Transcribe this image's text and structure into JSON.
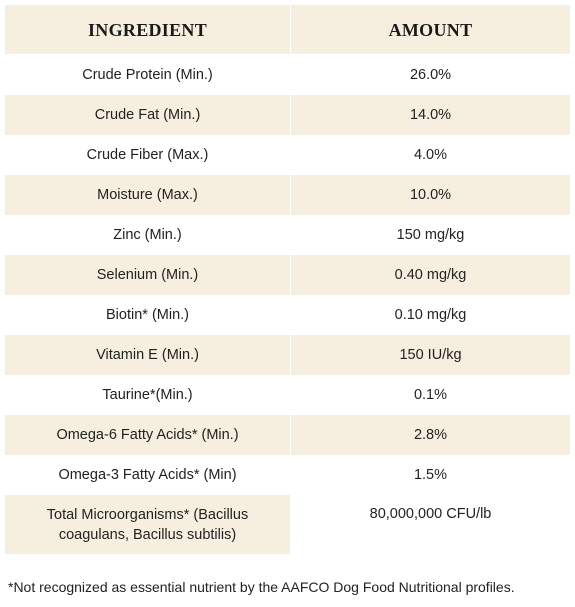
{
  "table": {
    "headers": {
      "ingredient": "INGREDIENT",
      "amount": "AMOUNT"
    },
    "rows": [
      {
        "ingredient": "Crude Protein (Min.)",
        "amount": "26.0%"
      },
      {
        "ingredient": "Crude Fat (Min.)",
        "amount": "14.0%"
      },
      {
        "ingredient": "Crude Fiber (Max.)",
        "amount": "4.0%"
      },
      {
        "ingredient": "Moisture (Max.)",
        "amount": "10.0%"
      },
      {
        "ingredient": "Zinc (Min.)",
        "amount": "150 mg/kg"
      },
      {
        "ingredient": "Selenium (Min.)",
        "amount": "0.40 mg/kg"
      },
      {
        "ingredient": "Biotin* (Min.)",
        "amount": "0.10 mg/kg"
      },
      {
        "ingredient": "Vitamin E (Min.)",
        "amount": "150 IU/kg"
      },
      {
        "ingredient": "Taurine*(Min.)",
        "amount": "0.1%"
      },
      {
        "ingredient": "Omega-6 Fatty Acids* (Min.)",
        "amount": "2.8%"
      },
      {
        "ingredient": "Omega-3 Fatty Acids* (Min)",
        "amount": "1.5%"
      },
      {
        "ingredient": "Total Microorganisms* (Bacillus coagulans, Bacillus subtilis)",
        "amount": "80,000,000 CFU/lb"
      }
    ]
  },
  "footnote": "*Not recognized as essential nutrient by the AAFCO Dog Food Nutritional profiles.",
  "colors": {
    "shade": "#f6efdf",
    "text": "#222222"
  }
}
